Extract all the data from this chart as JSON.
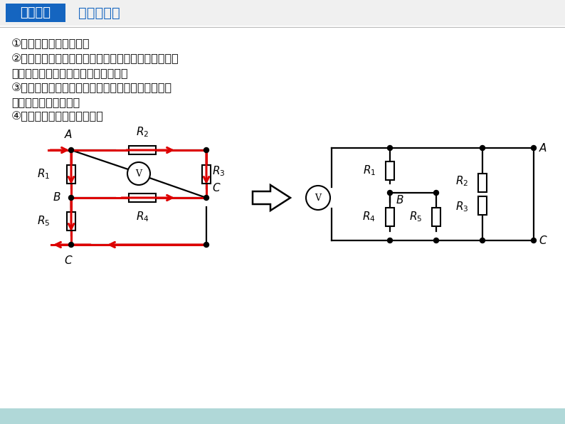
{
  "title_box_text": "简化方法",
  "title_subtitle": "电流分支法",
  "body_text": [
    "①将各节点用字母标上。",
    "②判定各支路元件的电流方向。（若电路无电压电流，",
    "可假设在总电路两端加上电压后判定）",
    "③按电流流向，自左向右（或自上向下）将各元件、",
    "节点、分支逐一画出。",
    "④将画出的等效图加工整理。"
  ],
  "bg_color": "#ffffff",
  "title_box_bg": "#1565c0",
  "title_box_text_color": "#ffffff",
  "subtitle_color": "#1565c0",
  "body_text_color": "#111111",
  "circuit_line_color": "#000000",
  "arrow_color": "#dd0000",
  "bottom_strip_color": "#b0d8d8"
}
